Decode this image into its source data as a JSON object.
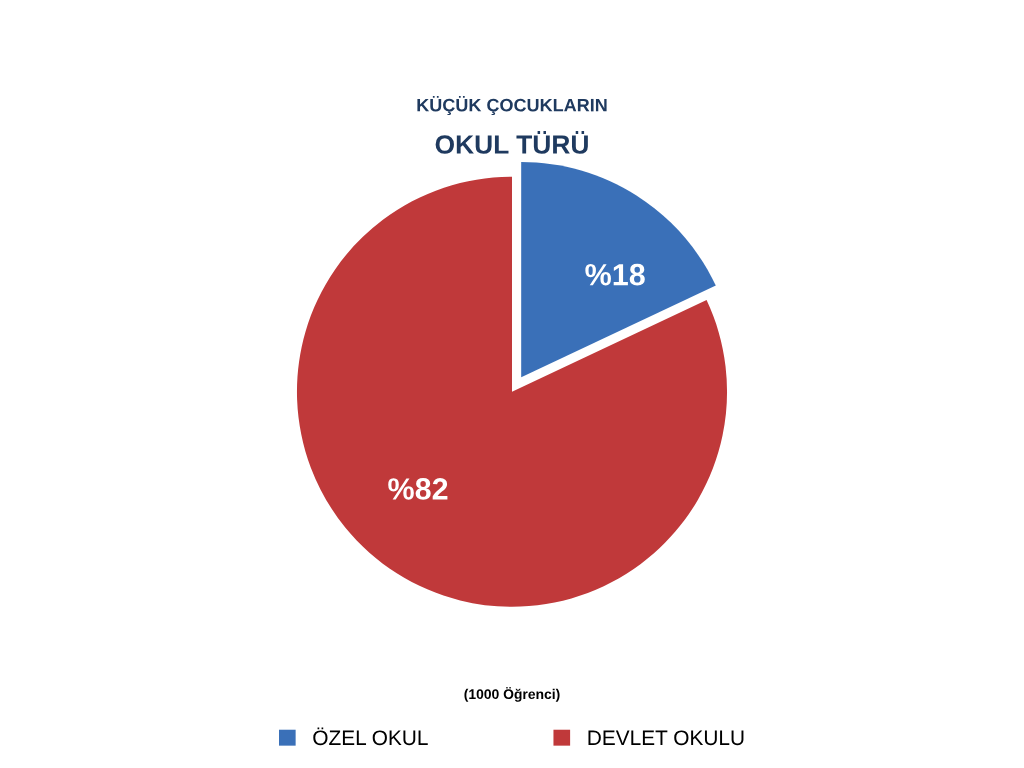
{
  "chart_data": {
    "type": "pie",
    "title": "KÜÇÜK ÇOCUKLARIN",
    "subtitle": "OKUL TÜRÜ",
    "categories": [
      "ÖZEL OKUL",
      "DEVLET OKULU"
    ],
    "values": [
      18,
      82
    ],
    "colors": [
      "#3a70b8",
      "#c0393a"
    ],
    "value_labels": [
      "%18",
      "%82"
    ],
    "legend": "bottom",
    "annotations": [
      "(1000 Öğrenci)"
    ]
  }
}
